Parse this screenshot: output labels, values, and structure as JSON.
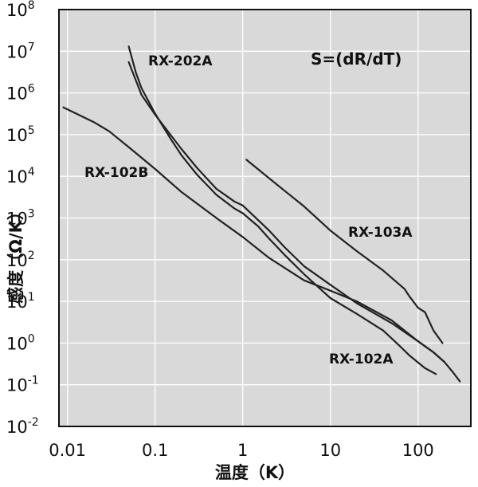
{
  "chart_data": {
    "type": "line",
    "title": "",
    "annotation": "S=(dR/dT)",
    "xlabel": "温度（K）",
    "ylabel": "感度（Ω/K）",
    "xscale": "log",
    "yscale": "log",
    "xlim": [
      0.008,
      400
    ],
    "ylim": [
      0.01,
      100000000
    ],
    "x_ticks": [
      {
        "value": 0.01,
        "label": "0.01"
      },
      {
        "value": 0.1,
        "label": "0.1"
      },
      {
        "value": 1,
        "label": "1"
      },
      {
        "value": 10,
        "label": "10"
      },
      {
        "value": 100,
        "label": "100"
      }
    ],
    "y_ticks": [
      {
        "value": 100000000,
        "base": "10",
        "exp": "8"
      },
      {
        "value": 10000000,
        "base": "10",
        "exp": "7"
      },
      {
        "value": 1000000,
        "base": "10",
        "exp": "6"
      },
      {
        "value": 100000,
        "base": "10",
        "exp": "5"
      },
      {
        "value": 10000,
        "base": "10",
        "exp": "4"
      },
      {
        "value": 1000,
        "base": "10",
        "exp": "3"
      },
      {
        "value": 100,
        "base": "10",
        "exp": "2"
      },
      {
        "value": 10,
        "base": "10",
        "exp": "1"
      },
      {
        "value": 1,
        "base": "10",
        "exp": "0"
      },
      {
        "value": 0.1,
        "base": "10",
        "exp": "-1"
      },
      {
        "value": 0.01,
        "base": "10",
        "exp": "-2"
      }
    ],
    "grid": true,
    "background": "#d9d9d9",
    "line_color": "#222222",
    "series": [
      {
        "name": "RX-202A",
        "points": [
          [
            0.05,
            13000000
          ],
          [
            0.06,
            3200000
          ],
          [
            0.07,
            1300000
          ],
          [
            0.1,
            320000
          ],
          [
            0.15,
            80000
          ],
          [
            0.2,
            32000
          ],
          [
            0.3,
            11000
          ],
          [
            0.5,
            3600
          ],
          [
            0.8,
            1700
          ],
          [
            1,
            1300
          ],
          [
            1.5,
            630
          ],
          [
            2,
            320
          ],
          [
            3,
            130
          ],
          [
            5,
            45
          ],
          [
            10,
            12
          ],
          [
            20,
            5
          ],
          [
            40,
            2
          ],
          [
            60,
            0.9
          ],
          [
            80,
            0.5
          ],
          [
            120,
            0.25
          ],
          [
            160,
            0.18
          ]
        ]
      },
      {
        "name": "RX-102A",
        "points": [
          [
            0.05,
            5500000
          ],
          [
            0.07,
            900000
          ],
          [
            0.1,
            300000
          ],
          [
            0.2,
            45000
          ],
          [
            0.3,
            16000
          ],
          [
            0.5,
            5000
          ],
          [
            0.8,
            2500
          ],
          [
            1,
            2000
          ],
          [
            2,
            500
          ],
          [
            3,
            200
          ],
          [
            5,
            70
          ],
          [
            10,
            25
          ],
          [
            20,
            9
          ],
          [
            50,
            3
          ],
          [
            100,
            1.1
          ],
          [
            150,
            0.6
          ],
          [
            200,
            0.35
          ],
          [
            250,
            0.2
          ],
          [
            300,
            0.12
          ]
        ]
      },
      {
        "name": "RX-102B",
        "points": [
          [
            0.009,
            450000
          ],
          [
            0.02,
            200000
          ],
          [
            0.03,
            120000
          ],
          [
            0.05,
            50000
          ],
          [
            0.1,
            15000
          ],
          [
            0.2,
            4200
          ],
          [
            0.5,
            1000
          ],
          [
            1,
            350
          ],
          [
            2,
            110
          ],
          [
            5,
            32
          ],
          [
            10,
            18
          ],
          [
            20,
            10
          ],
          [
            50,
            3.5
          ],
          [
            100,
            1.1
          ],
          [
            150,
            0.6
          ],
          [
            200,
            0.35
          ]
        ]
      },
      {
        "name": "RX-103A",
        "points": [
          [
            1.1,
            25000
          ],
          [
            2,
            9000
          ],
          [
            3,
            4500
          ],
          [
            5,
            1900
          ],
          [
            10,
            500
          ],
          [
            20,
            160
          ],
          [
            40,
            55
          ],
          [
            70,
            20
          ],
          [
            80,
            13
          ],
          [
            100,
            7
          ],
          [
            120,
            5.5
          ],
          [
            150,
            2
          ],
          [
            190,
            1
          ]
        ]
      }
    ]
  },
  "series_labels": [
    {
      "text": "RX-202A"
    },
    {
      "text": "RX-102B"
    },
    {
      "text": "RX-103A"
    },
    {
      "text": "RX-102A"
    }
  ]
}
